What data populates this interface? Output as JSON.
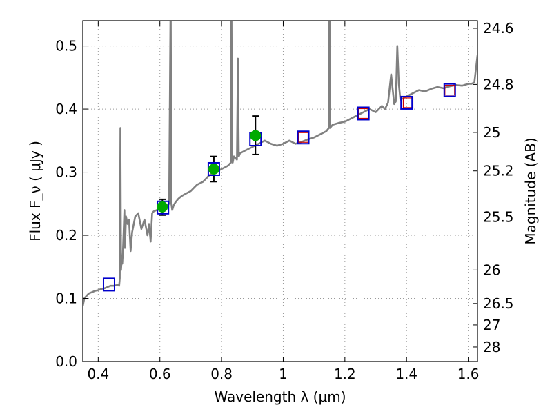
{
  "chart_data": {
    "type": "line",
    "xlabel": "Wavelength  λ (μm)",
    "ylabel": "Flux  F_ν  ( μJy )",
    "ylabel_right": "Magnitude (AB)",
    "xlim": [
      0.35,
      1.63
    ],
    "ylim": [
      0.0,
      0.54
    ],
    "grid": true,
    "x_ticks": [
      0.4,
      0.6,
      0.8,
      1.0,
      1.2,
      1.4,
      1.6
    ],
    "x_tick_labels": [
      "0.4",
      "0.6",
      "0.8",
      "1",
      "1.2",
      "1.4",
      "1.6"
    ],
    "y_ticks": [
      0.0,
      0.1,
      0.2,
      0.3,
      0.4,
      0.5
    ],
    "y_tick_labels": [
      "0.0",
      "0.1",
      "0.2",
      "0.3",
      "0.4",
      "0.5"
    ],
    "right_axis_ticks": [
      {
        "label": "24.6",
        "flux": 0.528
      },
      {
        "label": "24.8",
        "flux": 0.439
      },
      {
        "label": "25",
        "flux": 0.363
      },
      {
        "label": "25.2",
        "flux": 0.302
      },
      {
        "label": "25.5",
        "flux": 0.229
      },
      {
        "label": "26",
        "flux": 0.145
      },
      {
        "label": "26.5",
        "flux": 0.092
      },
      {
        "label": "27",
        "flux": 0.058
      },
      {
        "label": "28",
        "flux": 0.023
      }
    ],
    "colors": {
      "spectrum": "#808080",
      "blue_box": "#0000cc",
      "red_box": "#cc0000",
      "green_dot": "#00aa00",
      "errorbar": "#000000",
      "grid": "#999999"
    },
    "spectrum": {
      "x": [
        0.35,
        0.355,
        0.36,
        0.37,
        0.38,
        0.39,
        0.4,
        0.41,
        0.42,
        0.43,
        0.44,
        0.45,
        0.46,
        0.465,
        0.468,
        0.47,
        0.472,
        0.474,
        0.476,
        0.478,
        0.48,
        0.485,
        0.487,
        0.49,
        0.495,
        0.5,
        0.505,
        0.51,
        0.52,
        0.53,
        0.54,
        0.55,
        0.56,
        0.565,
        0.57,
        0.575,
        0.58,
        0.59,
        0.6,
        0.62,
        0.63,
        0.635,
        0.637,
        0.64,
        0.645,
        0.65,
        0.66,
        0.67,
        0.68,
        0.7,
        0.72,
        0.74,
        0.76,
        0.78,
        0.8,
        0.82,
        0.83,
        0.832,
        0.834,
        0.836,
        0.84,
        0.85,
        0.853,
        0.856,
        0.86,
        0.88,
        0.9,
        0.92,
        0.94,
        0.96,
        0.98,
        1.0,
        1.02,
        1.04,
        1.06,
        1.08,
        1.1,
        1.12,
        1.14,
        1.148,
        1.15,
        1.152,
        1.16,
        1.18,
        1.2,
        1.22,
        1.24,
        1.26,
        1.28,
        1.3,
        1.32,
        1.33,
        1.34,
        1.35,
        1.36,
        1.365,
        1.37,
        1.375,
        1.38,
        1.4,
        1.42,
        1.44,
        1.46,
        1.48,
        1.5,
        1.52,
        1.54,
        1.56,
        1.58,
        1.6,
        1.61,
        1.62,
        1.63
      ],
      "y": [
        0.088,
        0.1,
        0.103,
        0.108,
        0.11,
        0.112,
        0.113,
        0.115,
        0.116,
        0.118,
        0.12,
        0.12,
        0.121,
        0.122,
        0.12,
        0.132,
        0.37,
        0.145,
        0.16,
        0.155,
        0.172,
        0.24,
        0.18,
        0.23,
        0.218,
        0.225,
        0.175,
        0.205,
        0.23,
        0.235,
        0.21,
        0.225,
        0.2,
        0.218,
        0.19,
        0.235,
        0.238,
        0.24,
        0.243,
        0.246,
        0.25,
        0.6,
        0.25,
        0.24,
        0.248,
        0.252,
        0.258,
        0.262,
        0.265,
        0.27,
        0.28,
        0.285,
        0.295,
        0.3,
        0.305,
        0.31,
        0.315,
        0.6,
        0.32,
        0.315,
        0.325,
        0.32,
        0.48,
        0.325,
        0.33,
        0.335,
        0.34,
        0.345,
        0.35,
        0.345,
        0.342,
        0.345,
        0.35,
        0.345,
        0.348,
        0.352,
        0.355,
        0.36,
        0.365,
        0.37,
        0.6,
        0.37,
        0.375,
        0.378,
        0.38,
        0.385,
        0.39,
        0.395,
        0.4,
        0.395,
        0.405,
        0.4,
        0.41,
        0.455,
        0.408,
        0.412,
        0.5,
        0.44,
        0.415,
        0.42,
        0.425,
        0.43,
        0.428,
        0.432,
        0.435,
        0.433,
        0.436,
        0.438,
        0.437,
        0.44,
        0.44,
        0.442,
        0.485
      ]
    },
    "blue_boxes": {
      "x": [
        0.435,
        0.61,
        0.775,
        0.91,
        1.065,
        1.26,
        1.4,
        1.54
      ],
      "y": [
        0.122,
        0.244,
        0.305,
        0.352,
        0.355,
        0.393,
        0.41,
        0.43
      ]
    },
    "red_boxes": {
      "x": [
        1.065,
        1.26,
        1.405,
        1.54
      ],
      "y": [
        0.355,
        0.393,
        0.41,
        0.43
      ]
    },
    "green_points": {
      "x": [
        0.608,
        0.775,
        0.91
      ],
      "y": [
        0.245,
        0.305,
        0.358
      ],
      "err_low": [
        0.013,
        0.02,
        0.03
      ],
      "err_high": [
        0.012,
        0.02,
        0.031
      ]
    }
  }
}
